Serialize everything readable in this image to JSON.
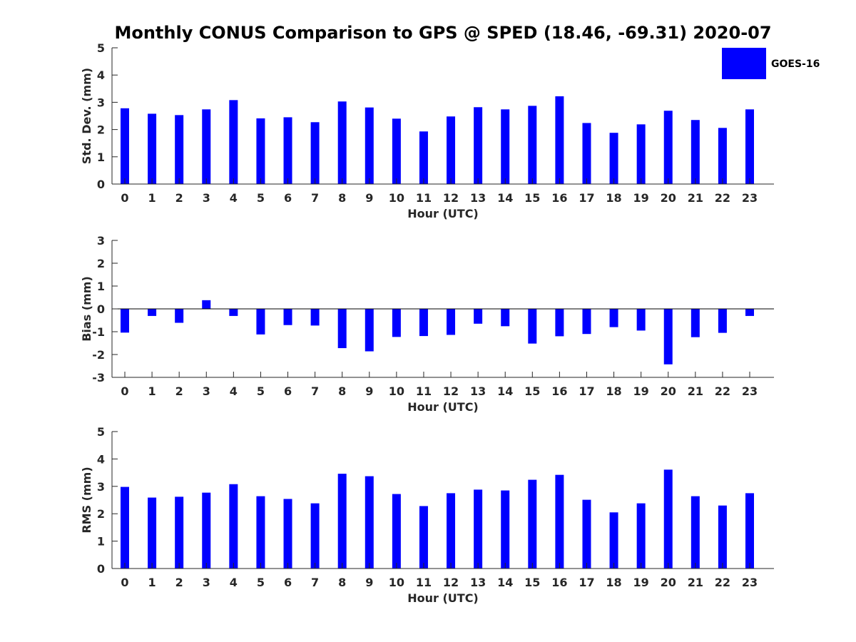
{
  "figure": {
    "title": "Monthly CONUS Comparison to GPS @ SPED (18.46, -69.31) 2020-07"
  },
  "legend": {
    "label": "GOES-16",
    "color": "#0000FF",
    "placement": "top-right"
  },
  "chart_data": [
    {
      "type": "bar",
      "name": "std-dev-panel",
      "xlabel": "Hour (UTC)",
      "ylabel": "Std. Dev. (mm)",
      "categories": [
        "0",
        "1",
        "2",
        "3",
        "4",
        "5",
        "6",
        "7",
        "8",
        "9",
        "10",
        "11",
        "12",
        "13",
        "14",
        "15",
        "16",
        "17",
        "18",
        "19",
        "20",
        "21",
        "22",
        "23"
      ],
      "ylim": [
        0,
        5
      ],
      "yticks": [
        0,
        1,
        2,
        3,
        4,
        5
      ],
      "grid": false,
      "series": [
        {
          "name": "GOES-16",
          "color": "#0000FF",
          "values": [
            2.78,
            2.58,
            2.53,
            2.74,
            3.08,
            2.41,
            2.45,
            2.27,
            3.03,
            2.81,
            2.4,
            1.93,
            2.48,
            2.82,
            2.74,
            2.87,
            3.22,
            2.24,
            1.88,
            2.19,
            2.69,
            2.35,
            2.06,
            2.74
          ]
        }
      ]
    },
    {
      "type": "bar",
      "name": "bias-panel",
      "xlabel": "Hour (UTC)",
      "ylabel": "Bias (mm)",
      "categories": [
        "0",
        "1",
        "2",
        "3",
        "4",
        "5",
        "6",
        "7",
        "8",
        "9",
        "10",
        "11",
        "12",
        "13",
        "14",
        "15",
        "16",
        "17",
        "18",
        "19",
        "20",
        "21",
        "22",
        "23"
      ],
      "ylim": [
        -3,
        3
      ],
      "yticks": [
        -3,
        -2,
        -1,
        0,
        1,
        2,
        3
      ],
      "grid": false,
      "zero_line": true,
      "series": [
        {
          "name": "GOES-16",
          "color": "#0000FF",
          "values": [
            -1.04,
            -0.31,
            -0.61,
            0.38,
            -0.31,
            -1.12,
            -0.71,
            -0.73,
            -1.72,
            -1.86,
            -1.23,
            -1.19,
            -1.14,
            -0.65,
            -0.76,
            -1.52,
            -1.2,
            -1.1,
            -0.8,
            -0.95,
            -2.43,
            -1.24,
            -1.05,
            -0.31
          ]
        }
      ]
    },
    {
      "type": "bar",
      "name": "rms-panel",
      "xlabel": "Hour (UTC)",
      "ylabel": "RMS (mm)",
      "categories": [
        "0",
        "1",
        "2",
        "3",
        "4",
        "5",
        "6",
        "7",
        "8",
        "9",
        "10",
        "11",
        "12",
        "13",
        "14",
        "15",
        "16",
        "17",
        "18",
        "19",
        "20",
        "21",
        "22",
        "23"
      ],
      "ylim": [
        0,
        5
      ],
      "yticks": [
        0,
        1,
        2,
        3,
        4,
        5
      ],
      "grid": false,
      "series": [
        {
          "name": "GOES-16",
          "color": "#0000FF",
          "values": [
            2.98,
            2.59,
            2.62,
            2.77,
            3.08,
            2.64,
            2.54,
            2.38,
            3.46,
            3.37,
            2.72,
            2.28,
            2.75,
            2.88,
            2.85,
            3.24,
            3.42,
            2.51,
            2.05,
            2.38,
            3.61,
            2.64,
            2.3,
            2.75
          ]
        }
      ]
    }
  ]
}
